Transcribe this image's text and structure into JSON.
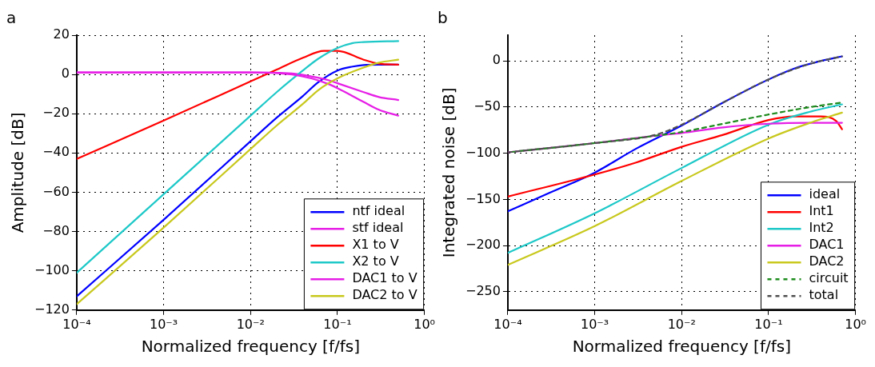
{
  "chart_data": [
    {
      "type": "line",
      "title": "a",
      "xlabel": "Normalized frequency [f/fs]",
      "ylabel": "Amplitude [dB]",
      "log": "x",
      "grid": true,
      "legend": "bottom right",
      "marker": "none",
      "xlim": [
        0.0001,
        1
      ],
      "xticks": [
        {
          "value": 0.0001,
          "label": "10⁻⁴"
        },
        {
          "value": 0.001,
          "label": "10⁻³"
        },
        {
          "value": 0.01,
          "label": "10⁻²"
        },
        {
          "value": 0.1,
          "label": "10⁻¹"
        },
        {
          "value": 1,
          "label": "10⁰"
        }
      ],
      "ylim": [
        -120,
        20
      ],
      "yticks": [
        -120,
        -100,
        -80,
        -60,
        -40,
        -20,
        0,
        20
      ],
      "series": [
        {
          "name": "ntf ideal",
          "color": "#0000ff",
          "x": [
            0.0001,
            0.001,
            0.01,
            0.02,
            0.04,
            0.06,
            0.1,
            0.15,
            0.2,
            0.3,
            0.5
          ],
          "values": [
            -113,
            -74,
            -34,
            -22,
            -11,
            -4,
            2,
            4,
            4.8,
            5,
            5
          ]
        },
        {
          "name": "stf ideal",
          "color": "#e61ee6",
          "x": [
            0.0001,
            0.01,
            0.03,
            0.05,
            0.08,
            0.1,
            0.2,
            0.3,
            0.5
          ],
          "values": [
            1,
            1,
            0.5,
            -1,
            -3,
            -4.5,
            -9,
            -11.5,
            -13
          ]
        },
        {
          "name": "X1 to V",
          "color": "#ff0000",
          "x": [
            0.0001,
            0.001,
            0.01,
            0.02,
            0.04,
            0.07,
            0.1,
            0.2,
            0.3,
            0.5
          ],
          "values": [
            -43,
            -23.5,
            -3.5,
            2.5,
            8.5,
            12,
            12,
            7.5,
            5.5,
            5
          ]
        },
        {
          "name": "X2 to V",
          "color": "#1ec8c8",
          "x": [
            0.0001,
            0.001,
            0.01,
            0.02,
            0.04,
            0.06,
            0.1,
            0.15,
            0.2,
            0.5
          ],
          "values": [
            -101,
            -61,
            -21,
            -9,
            2,
            8,
            13.5,
            16,
            16.5,
            17
          ]
        },
        {
          "name": "DAC1 to V",
          "color": "#e61ee6",
          "x": [
            0.0001,
            0.01,
            0.03,
            0.05,
            0.08,
            0.1,
            0.2,
            0.3,
            0.5
          ],
          "values": [
            1,
            1,
            0,
            -2,
            -5,
            -7,
            -14,
            -18,
            -21
          ]
        },
        {
          "name": "DAC2 to V",
          "color": "#c8c81e",
          "x": [
            0.0001,
            0.001,
            0.01,
            0.02,
            0.04,
            0.06,
            0.1,
            0.2,
            0.3,
            0.5
          ],
          "values": [
            -117,
            -78,
            -38,
            -26,
            -15,
            -8,
            -2,
            3.5,
            6,
            7.5
          ]
        }
      ]
    },
    {
      "type": "line",
      "title": "b",
      "xlabel": "Normalized frequency [f/fs]",
      "ylabel": "Integrated noise [dB]",
      "log": "x",
      "grid": true,
      "legend": "bottom right",
      "marker": "none",
      "xlim": [
        0.0001,
        1
      ],
      "xticks": [
        {
          "value": 0.0001,
          "label": "10⁻⁴"
        },
        {
          "value": 0.001,
          "label": "10⁻³"
        },
        {
          "value": 0.01,
          "label": "10⁻²"
        },
        {
          "value": 0.1,
          "label": "10⁻¹"
        },
        {
          "value": 1,
          "label": "10⁰"
        }
      ],
      "ylim": [
        -270,
        28
      ],
      "yticks": [
        -250,
        -200,
        -150,
        -100,
        -50,
        0
      ],
      "series": [
        {
          "name": "ideal",
          "color": "#0000ff",
          "x": [
            0.0001,
            0.0003,
            0.001,
            0.003,
            0.01,
            0.03,
            0.1,
            0.2,
            0.4,
            0.7
          ],
          "values": [
            -163,
            -143,
            -121,
            -95,
            -70,
            -45,
            -20,
            -8,
            0,
            5
          ]
        },
        {
          "name": "Int1",
          "color": "#ff0000",
          "x": [
            0.0001,
            0.001,
            0.003,
            0.01,
            0.03,
            0.1,
            0.2,
            0.4,
            0.6,
            0.7
          ],
          "values": [
            -147,
            -123,
            -110,
            -93,
            -80,
            -64,
            -60,
            -60,
            -65,
            -74
          ]
        },
        {
          "name": "Int2",
          "color": "#1ec8c8",
          "x": [
            0.0001,
            0.001,
            0.01,
            0.1,
            0.3,
            0.7
          ],
          "values": [
            -208,
            -165,
            -116,
            -69,
            -55,
            -47
          ]
        },
        {
          "name": "DAC1",
          "color": "#e61ee6",
          "x": [
            0.0001,
            0.001,
            0.005,
            0.01,
            0.03,
            0.1,
            0.3,
            0.7
          ],
          "values": [
            -99,
            -89,
            -81,
            -78,
            -72,
            -68,
            -67,
            -67
          ]
        },
        {
          "name": "DAC2",
          "color": "#c8c81e",
          "x": [
            0.0001,
            0.001,
            0.01,
            0.1,
            0.3,
            0.7
          ],
          "values": [
            -221,
            -179,
            -130,
            -84,
            -67,
            -56
          ]
        },
        {
          "name": "circuit",
          "color": "#1e8c1e",
          "line_style": "dashed",
          "x": [
            0.0001,
            0.001,
            0.005,
            0.01,
            0.03,
            0.1,
            0.3,
            0.7
          ],
          "values": [
            -99,
            -89,
            -81,
            -77,
            -68,
            -58,
            -50,
            -45
          ]
        },
        {
          "name": "total",
          "color": "#505050",
          "line_style": "dashed",
          "x": [
            0.0001,
            0.001,
            0.005,
            0.01,
            0.03,
            0.1,
            0.3,
            0.7
          ],
          "values": [
            -99,
            -89,
            -80,
            -69,
            -45,
            -20,
            -3,
            5
          ]
        }
      ]
    }
  ]
}
